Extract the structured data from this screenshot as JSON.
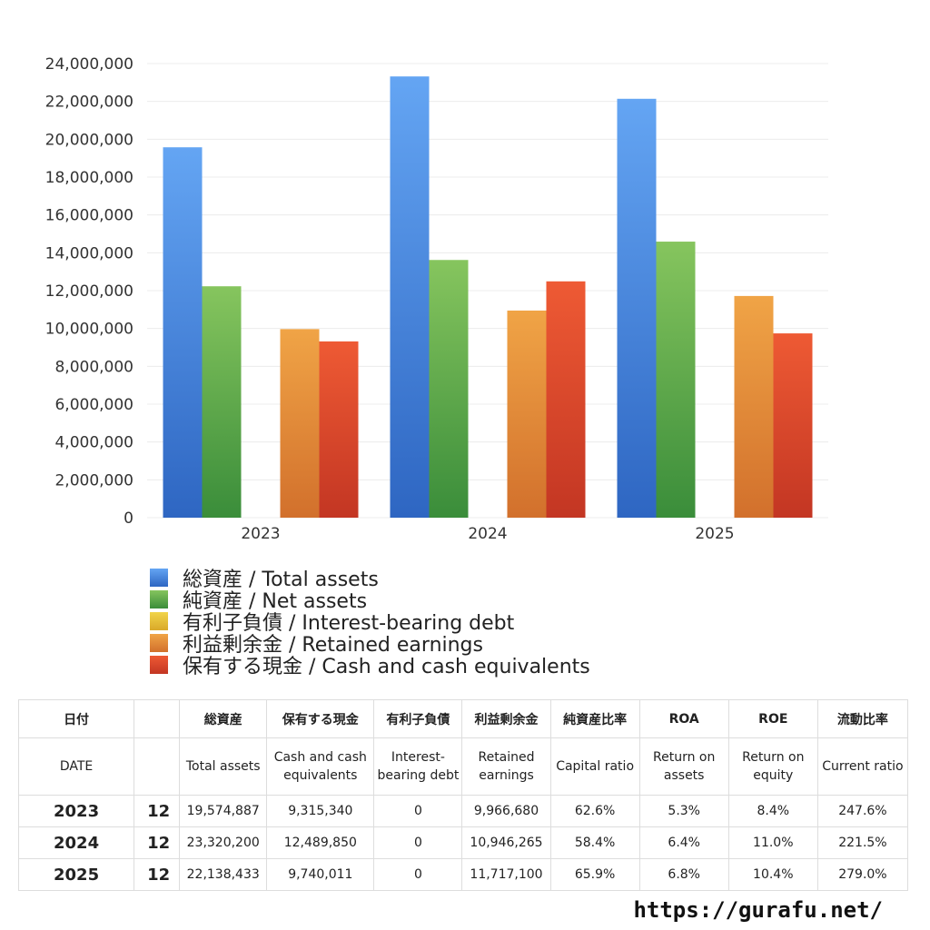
{
  "chart_data": {
    "type": "bar",
    "categories": [
      "2023",
      "2024",
      "2025"
    ],
    "ylim": [
      0,
      24000000
    ],
    "yticks": [
      "0",
      "2,000,000",
      "4,000,000",
      "6,000,000",
      "8,000,000",
      "10,000,000",
      "12,000,000",
      "14,000,000",
      "16,000,000",
      "18,000,000",
      "20,000,000",
      "22,000,000",
      "24,000,000"
    ],
    "ytick_values": [
      0,
      2000000,
      4000000,
      6000000,
      8000000,
      10000000,
      12000000,
      14000000,
      16000000,
      18000000,
      20000000,
      22000000,
      24000000
    ],
    "grid": true,
    "legend_position": "bottom",
    "series": [
      {
        "name": "総資産 / Total assets",
        "values": [
          19574887,
          23320200,
          22138433
        ],
        "color_top": "#64a5f3",
        "color_bottom": "#2e66c2"
      },
      {
        "name": "純資産 / Net assets",
        "values": [
          12230000,
          13620000,
          14590000
        ],
        "color_top": "#86c55e",
        "color_bottom": "#3a8d3a"
      },
      {
        "name": "有利子負債 / Interest-bearing debt",
        "values": [
          0,
          0,
          0
        ],
        "color_top": "#f1d44a",
        "color_bottom": "#d9a929"
      },
      {
        "name": "利益剰余金 / Retained earnings",
        "values": [
          9966680,
          10946265,
          11717100
        ],
        "color_top": "#f0a446",
        "color_bottom": "#d2702c"
      },
      {
        "name": "保有する現金 /  Cash and cash equivalents",
        "values": [
          9315340,
          12489850,
          9740011
        ],
        "color_top": "#ee5a34",
        "color_bottom": "#c33623"
      }
    ]
  },
  "table": {
    "header_jp": [
      "日付",
      "",
      "総資産",
      "保有する現金",
      "有利子負債",
      "利益剰余金",
      "純資産比率",
      "ROA",
      "ROE",
      "流動比率"
    ],
    "header_en": [
      "DATE",
      "",
      "Total assets",
      "Cash and cash equivalents",
      "Interest-bearing debt",
      "Retained earnings",
      "Capital ratio",
      "Return on assets",
      "Return on equity",
      "Current ratio"
    ],
    "rows": [
      [
        "2023",
        "12",
        "19,574,887",
        "9,315,340",
        "0",
        "9,966,680",
        "62.6%",
        "5.3%",
        "8.4%",
        "247.6%"
      ],
      [
        "2024",
        "12",
        "23,320,200",
        "12,489,850",
        "0",
        "10,946,265",
        "58.4%",
        "6.4%",
        "11.0%",
        "221.5%"
      ],
      [
        "2025",
        "12",
        "22,138,433",
        "9,740,011",
        "0",
        "11,717,100",
        "65.9%",
        "6.8%",
        "10.4%",
        "279.0%"
      ]
    ]
  },
  "footer": {
    "url": "https://gurafu.net/"
  }
}
